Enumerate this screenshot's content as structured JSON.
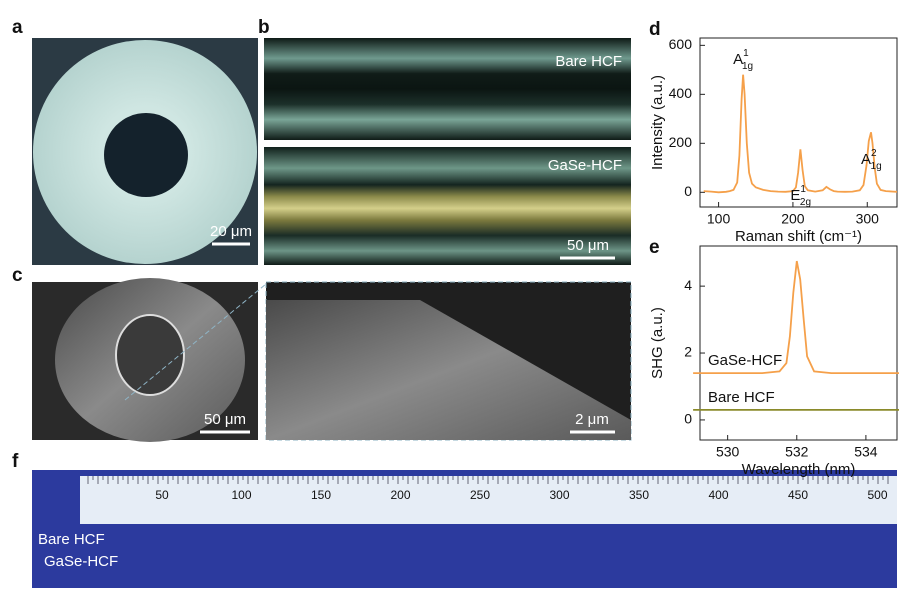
{
  "figure": {
    "panel_labels": [
      "a",
      "b",
      "c",
      "d",
      "e",
      "f"
    ],
    "b_labels": [
      "Bare HCF",
      "GaSe-HCF"
    ],
    "scale_bars": [
      "20 μm",
      "50 μm",
      "50 μm",
      "2 μm"
    ],
    "f_labels": [
      "Bare  HCF",
      "GaSe-HCF"
    ],
    "ruler_labels": [
      "50",
      "100",
      "150",
      "200",
      "250",
      "300",
      "350",
      "400",
      "450",
      "500"
    ]
  },
  "chart_data": [
    {
      "type": "line",
      "x_label": "Raman  shift (cm⁻¹)",
      "y_label": "Intensity (a.u.)",
      "color": "#f5a04a",
      "x": [
        80,
        90,
        100,
        110,
        115,
        120,
        125,
        128,
        131,
        133,
        135,
        138,
        141,
        145,
        150,
        160,
        170,
        180,
        190,
        200,
        204,
        207,
        210,
        213,
        216,
        220,
        230,
        240,
        245,
        250,
        255,
        260,
        270,
        280,
        290,
        295,
        299,
        302,
        305,
        307,
        310,
        313,
        318,
        325,
        335,
        340
      ],
      "values": [
        5,
        3,
        0,
        2,
        5,
        10,
        40,
        150,
        380,
        480,
        400,
        200,
        80,
        35,
        20,
        10,
        5,
        3,
        2,
        5,
        20,
        80,
        175,
        90,
        25,
        8,
        3,
        8,
        22,
        12,
        5,
        3,
        2,
        3,
        8,
        30,
        110,
        210,
        245,
        200,
        100,
        35,
        10,
        5,
        3,
        2
      ],
      "annotations": [
        {
          "base": "A",
          "sub": "1g",
          "sup": "1"
        },
        {
          "base": "E",
          "sub": "2g",
          "sup": "1"
        },
        {
          "base": "A",
          "sub": "1g",
          "sup": "2"
        }
      ],
      "xlim": [
        75,
        340
      ],
      "ylim": [
        -60,
        630
      ],
      "xticks": [
        100,
        200,
        300
      ],
      "yticks": [
        0,
        200,
        400,
        600
      ]
    },
    {
      "type": "line",
      "x_label": "Wavelength  (nm)",
      "y_label": "SHG   (a.u.)",
      "x": [
        529,
        530,
        531,
        531.5,
        531.7,
        531.8,
        531.9,
        532,
        532.1,
        532.2,
        532.3,
        532.5,
        533,
        534,
        535
      ],
      "series": [
        {
          "name": "GaSe-HCF",
          "color": "#f5a04a",
          "values": [
            1.4,
            1.4,
            1.4,
            1.45,
            1.7,
            2.5,
            3.8,
            4.75,
            4.2,
            3.0,
            1.9,
            1.45,
            1.4,
            1.4,
            1.4
          ]
        },
        {
          "name": "Bare HCF",
          "color": "#8a8a2a",
          "values": [
            0.3,
            0.3,
            0.3,
            0.3,
            0.3,
            0.3,
            0.3,
            0.3,
            0.3,
            0.3,
            0.3,
            0.3,
            0.3,
            0.3,
            0.3
          ]
        }
      ],
      "xlim": [
        529.2,
        534.9
      ],
      "ylim": [
        -0.6,
        5.2
      ],
      "xticks": [
        530,
        532,
        534
      ],
      "yticks": [
        0,
        2,
        4
      ]
    }
  ]
}
